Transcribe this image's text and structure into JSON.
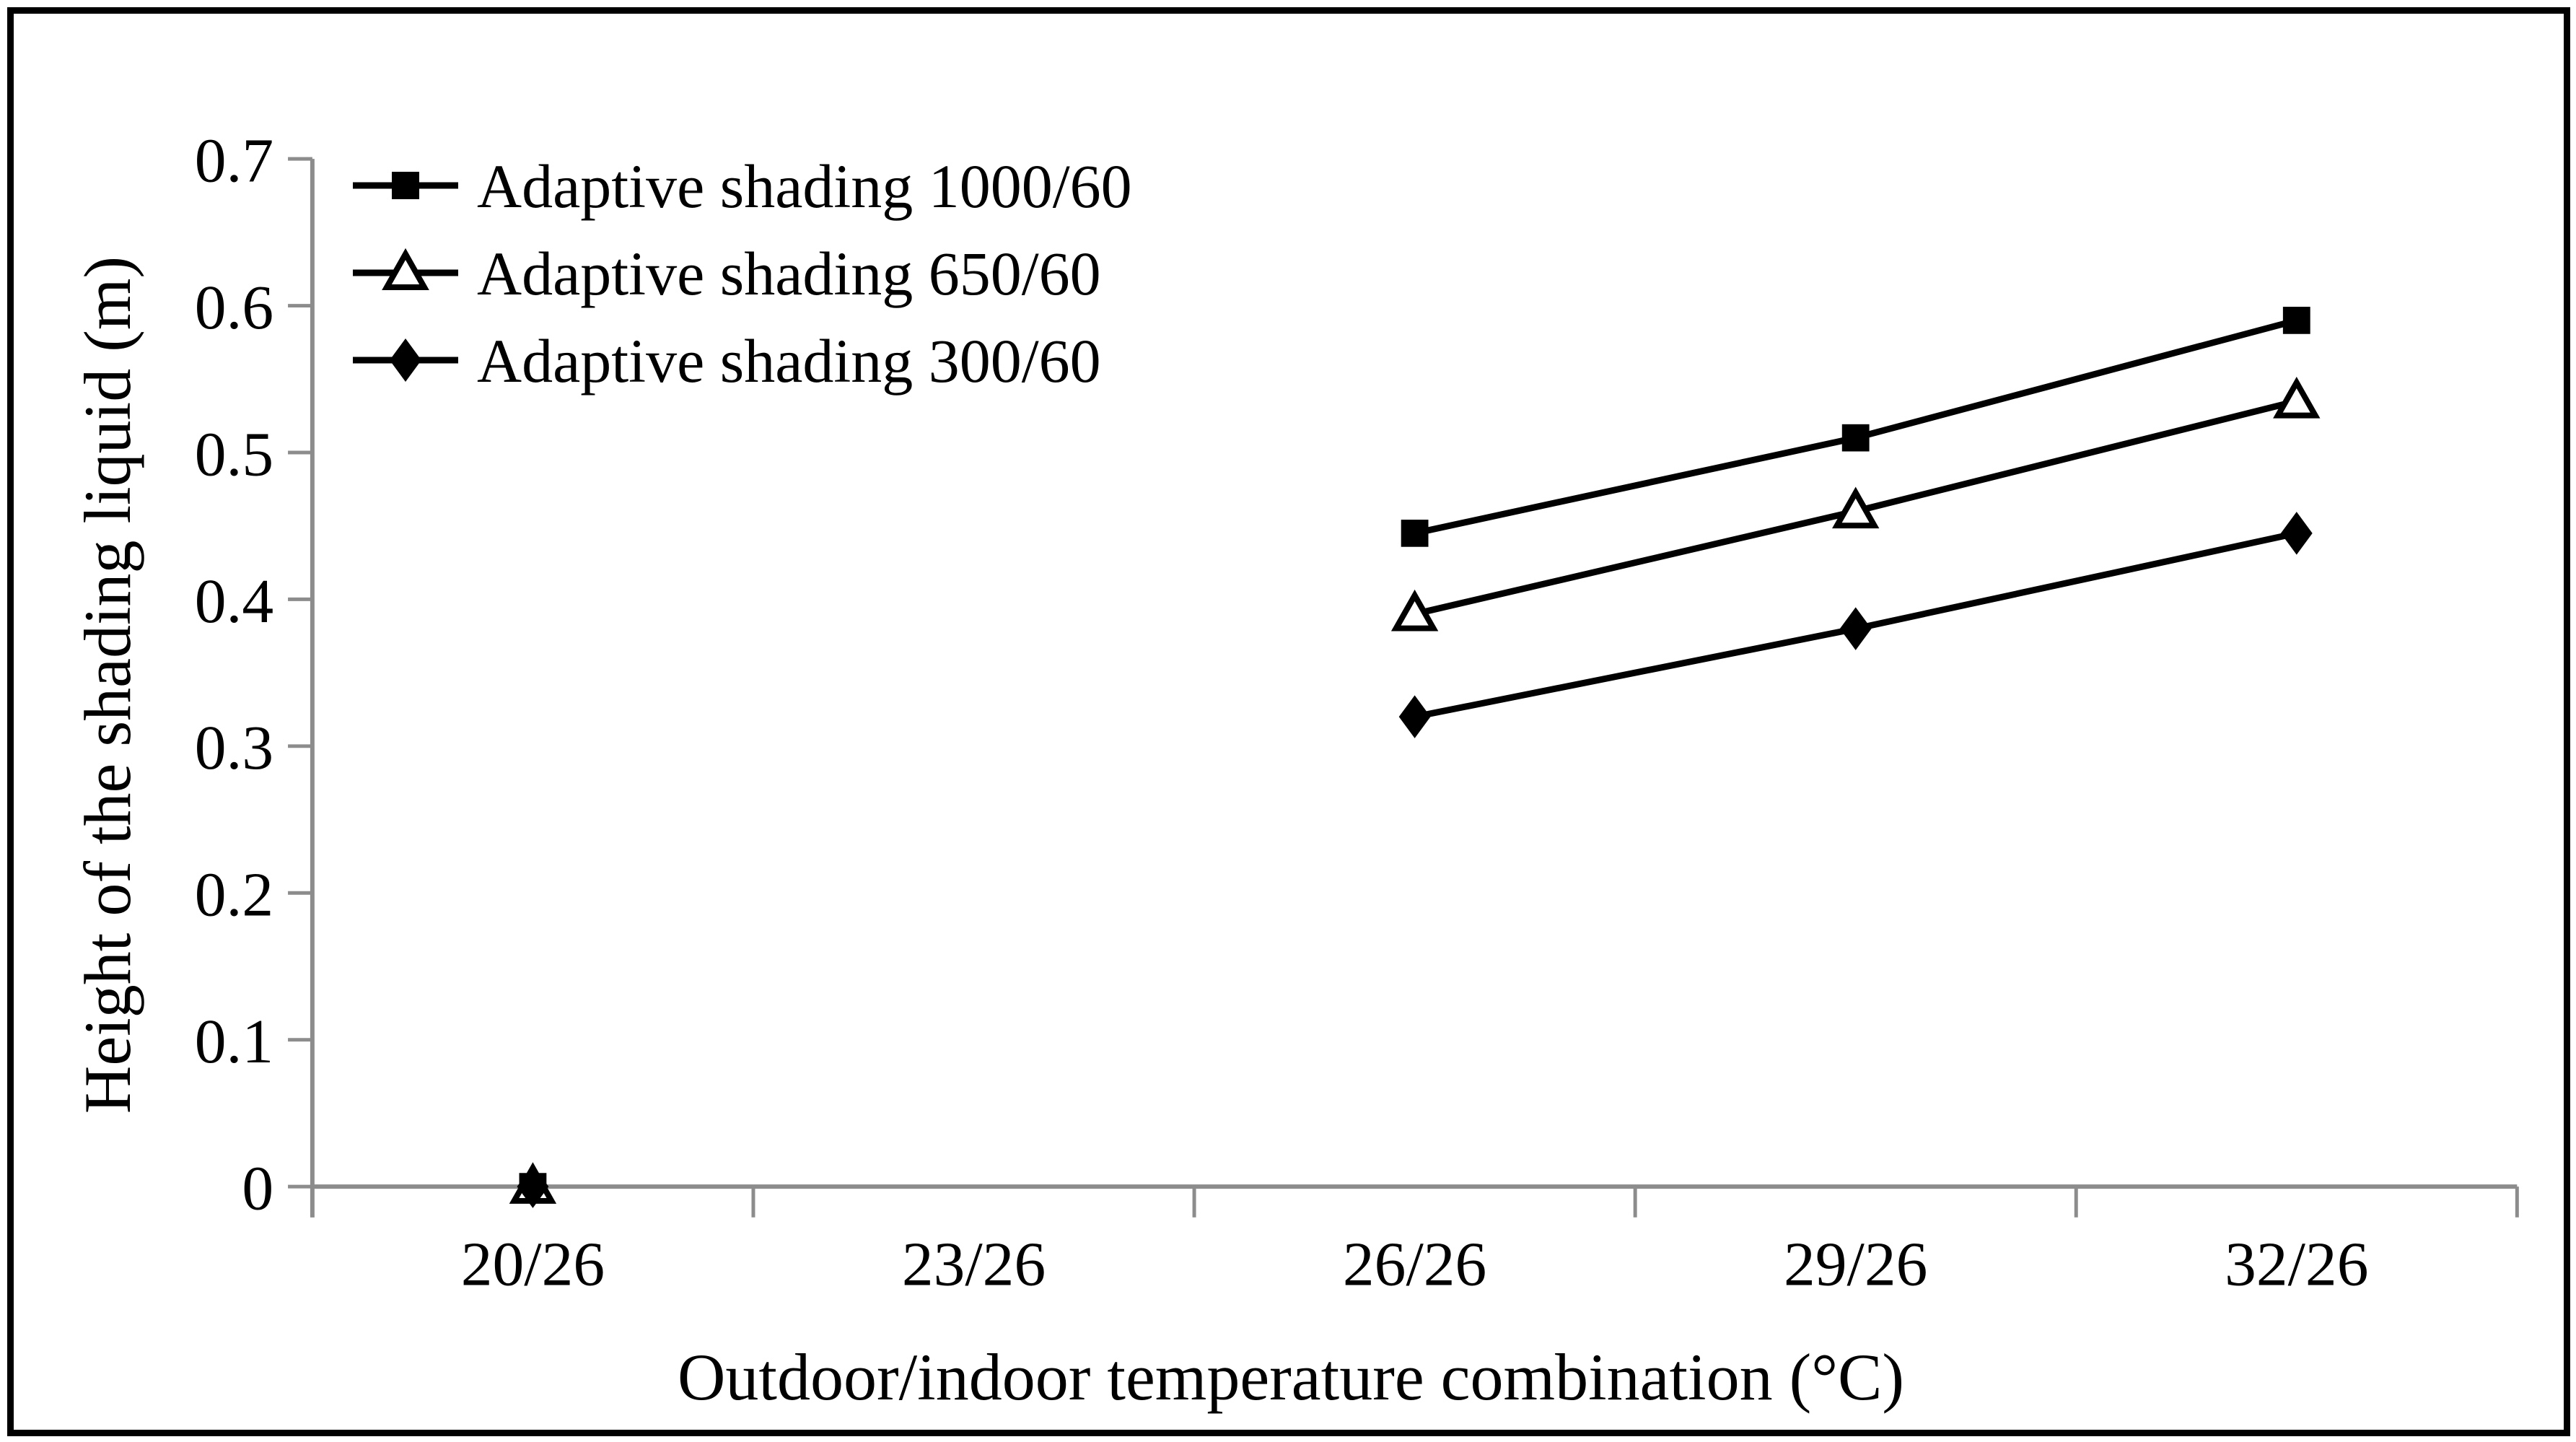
{
  "figure": {
    "background": "#ffffff",
    "border_color": "#000000"
  },
  "chart_data": {
    "type": "line",
    "title": "",
    "xlabel": "Outdoor/indoor temperature combination (°C)",
    "ylabel": "Height of the shading liquid (m)",
    "categories": [
      "20/26",
      "23/26",
      "26/26",
      "29/26",
      "32/26"
    ],
    "series": [
      {
        "name": "Adaptive shading 1000/60",
        "marker": "filled-square",
        "values": [
          0,
          null,
          0.445,
          0.51,
          0.59
        ]
      },
      {
        "name": "Adaptive shading 650/60",
        "marker": "open-triangle",
        "values": [
          0,
          null,
          0.39,
          0.46,
          0.535
        ]
      },
      {
        "name": "Adaptive shading 300/60",
        "marker": "filled-diamond",
        "values": [
          0,
          null,
          0.32,
          0.38,
          0.445
        ]
      }
    ],
    "ylim": [
      0,
      0.7
    ],
    "yticks": [
      0,
      0.1,
      0.2,
      0.3,
      0.4,
      0.5,
      0.6,
      0.7
    ],
    "ytick_labels": [
      "0",
      "0.1",
      "0.2",
      "0.3",
      "0.4",
      "0.5",
      "0.6",
      "0.7"
    ],
    "grid": false,
    "legend_position": "top-left-inside",
    "line_color": "#000000",
    "marker_fill": "#000000",
    "open_marker_fill": "#ffffff",
    "axis_color": "#8c8c8c",
    "text_color": "#000000"
  }
}
